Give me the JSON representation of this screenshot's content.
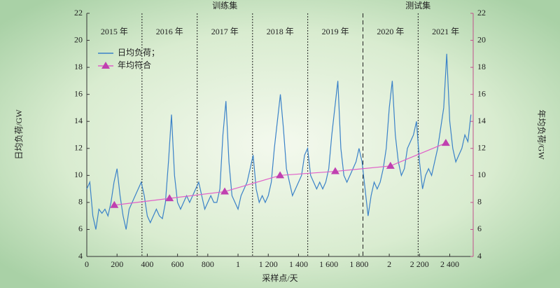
{
  "chart_data": {
    "type": "line",
    "xlabel": "采样点/天",
    "ylabel": "日均负荷/GW",
    "y2label": "年均负荷/GW",
    "regions": [
      {
        "label": "训练集",
        "from": 0,
        "to": 1826
      },
      {
        "label": "测试集",
        "from": 1826,
        "to": 2555
      }
    ],
    "dividers": [
      {
        "value": 365,
        "style": "dotted"
      },
      {
        "value": 730,
        "style": "dotted"
      },
      {
        "value": 1096,
        "style": "dotted"
      },
      {
        "value": 1461,
        "style": "dotted"
      },
      {
        "value": 1826,
        "style": "dashed"
      },
      {
        "value": 2191,
        "style": "dotted"
      }
    ],
    "year_labels": [
      "2015 年",
      "2016 年",
      "2017 年",
      "2018 年",
      "2019 年",
      "2020 年",
      "2021 年"
    ],
    "xlim": [
      0,
      2555
    ],
    "xticks": [
      0,
      200,
      400,
      600,
      800,
      {
        "value": 1000,
        "label": "1"
      },
      {
        "value": 1200,
        "label": "1 200"
      },
      {
        "value": 1400,
        "label": "1 400"
      },
      {
        "value": 1600,
        "label": "1 600"
      },
      {
        "value": 1800,
        "label": "1 800"
      },
      {
        "value": 2000,
        "label": "2"
      },
      {
        "value": 2200,
        "label": "2 200"
      },
      {
        "value": 2400,
        "label": "2 400"
      }
    ],
    "ylim": [
      4,
      22
    ],
    "yticks": [
      4,
      6,
      8,
      10,
      12,
      14,
      16,
      18,
      20,
      22
    ],
    "y2lim": [
      4,
      22
    ],
    "y2ticks": [
      4,
      6,
      8,
      10,
      12,
      14,
      16,
      18,
      20,
      22
    ],
    "legend": "upper left",
    "x": [
      0,
      20,
      40,
      60,
      80,
      100,
      120,
      140,
      160,
      180,
      200,
      220,
      240,
      260,
      280,
      300,
      320,
      340,
      360,
      380,
      400,
      420,
      440,
      460,
      480,
      500,
      520,
      540,
      560,
      580,
      600,
      620,
      640,
      660,
      680,
      700,
      720,
      740,
      760,
      780,
      800,
      820,
      840,
      860,
      880,
      900,
      920,
      940,
      960,
      980,
      1000,
      1020,
      1040,
      1060,
      1080,
      1100,
      1120,
      1140,
      1160,
      1180,
      1200,
      1220,
      1240,
      1260,
      1280,
      1300,
      1320,
      1340,
      1360,
      1380,
      1400,
      1420,
      1440,
      1460,
      1480,
      1500,
      1520,
      1540,
      1560,
      1580,
      1600,
      1620,
      1640,
      1660,
      1680,
      1700,
      1720,
      1740,
      1760,
      1780,
      1800,
      1820,
      1840,
      1860,
      1880,
      1900,
      1920,
      1940,
      1960,
      1980,
      2000,
      2020,
      2040,
      2060,
      2080,
      2100,
      2120,
      2140,
      2160,
      2180,
      2200,
      2220,
      2240,
      2260,
      2280,
      2300,
      2320,
      2340,
      2360,
      2380,
      2400,
      2420,
      2440,
      2460,
      2480,
      2500,
      2520,
      2540
    ],
    "series": [
      {
        "name": "日均负荷；",
        "color": "#3b82c8",
        "values": [
          9.0,
          9.5,
          7.0,
          6.0,
          7.5,
          7.2,
          7.5,
          7.0,
          8.0,
          9.5,
          10.5,
          8.5,
          7.0,
          6.0,
          7.5,
          8.0,
          8.5,
          9.0,
          9.5,
          8.5,
          7.0,
          6.5,
          7.0,
          7.5,
          7.0,
          6.8,
          8.0,
          11.0,
          14.5,
          10.0,
          8.0,
          7.5,
          8.0,
          8.5,
          8.0,
          8.5,
          9.0,
          9.5,
          8.5,
          7.5,
          8.0,
          8.5,
          8.0,
          8.0,
          9.0,
          13.0,
          15.5,
          11.0,
          8.5,
          8.0,
          7.5,
          8.5,
          9.0,
          9.5,
          10.5,
          11.5,
          9.0,
          8.0,
          8.5,
          8.0,
          8.5,
          9.5,
          12.0,
          14.0,
          16.0,
          13.5,
          10.5,
          9.5,
          8.5,
          9.0,
          9.5,
          10.0,
          11.5,
          12.0,
          10.0,
          9.5,
          9.0,
          9.5,
          9.0,
          9.5,
          10.5,
          13.0,
          15.0,
          17.0,
          12.0,
          10.0,
          9.5,
          10.0,
          10.5,
          11.0,
          12.0,
          11.0,
          9.0,
          7.0,
          8.5,
          9.5,
          9.0,
          9.5,
          10.5,
          12.0,
          15.0,
          17.0,
          13.0,
          11.0,
          10.0,
          10.5,
          12.0,
          12.5,
          13.0,
          14.0,
          11.0,
          9.0,
          10.0,
          10.5,
          10.0,
          11.0,
          12.0,
          13.5,
          15.0,
          19.0,
          14.0,
          12.0,
          11.0,
          11.5,
          12.0,
          13.0,
          12.5,
          14.5
        ]
      },
      {
        "name": "年均符合",
        "color": "#e060c8",
        "marker_color": "#c040b0",
        "axis": "y2",
        "x": [
          182,
          547,
          912,
          1278,
          1643,
          2008,
          2374
        ],
        "values": [
          7.8,
          8.3,
          8.8,
          10.0,
          10.3,
          10.7,
          12.4
        ]
      }
    ]
  }
}
